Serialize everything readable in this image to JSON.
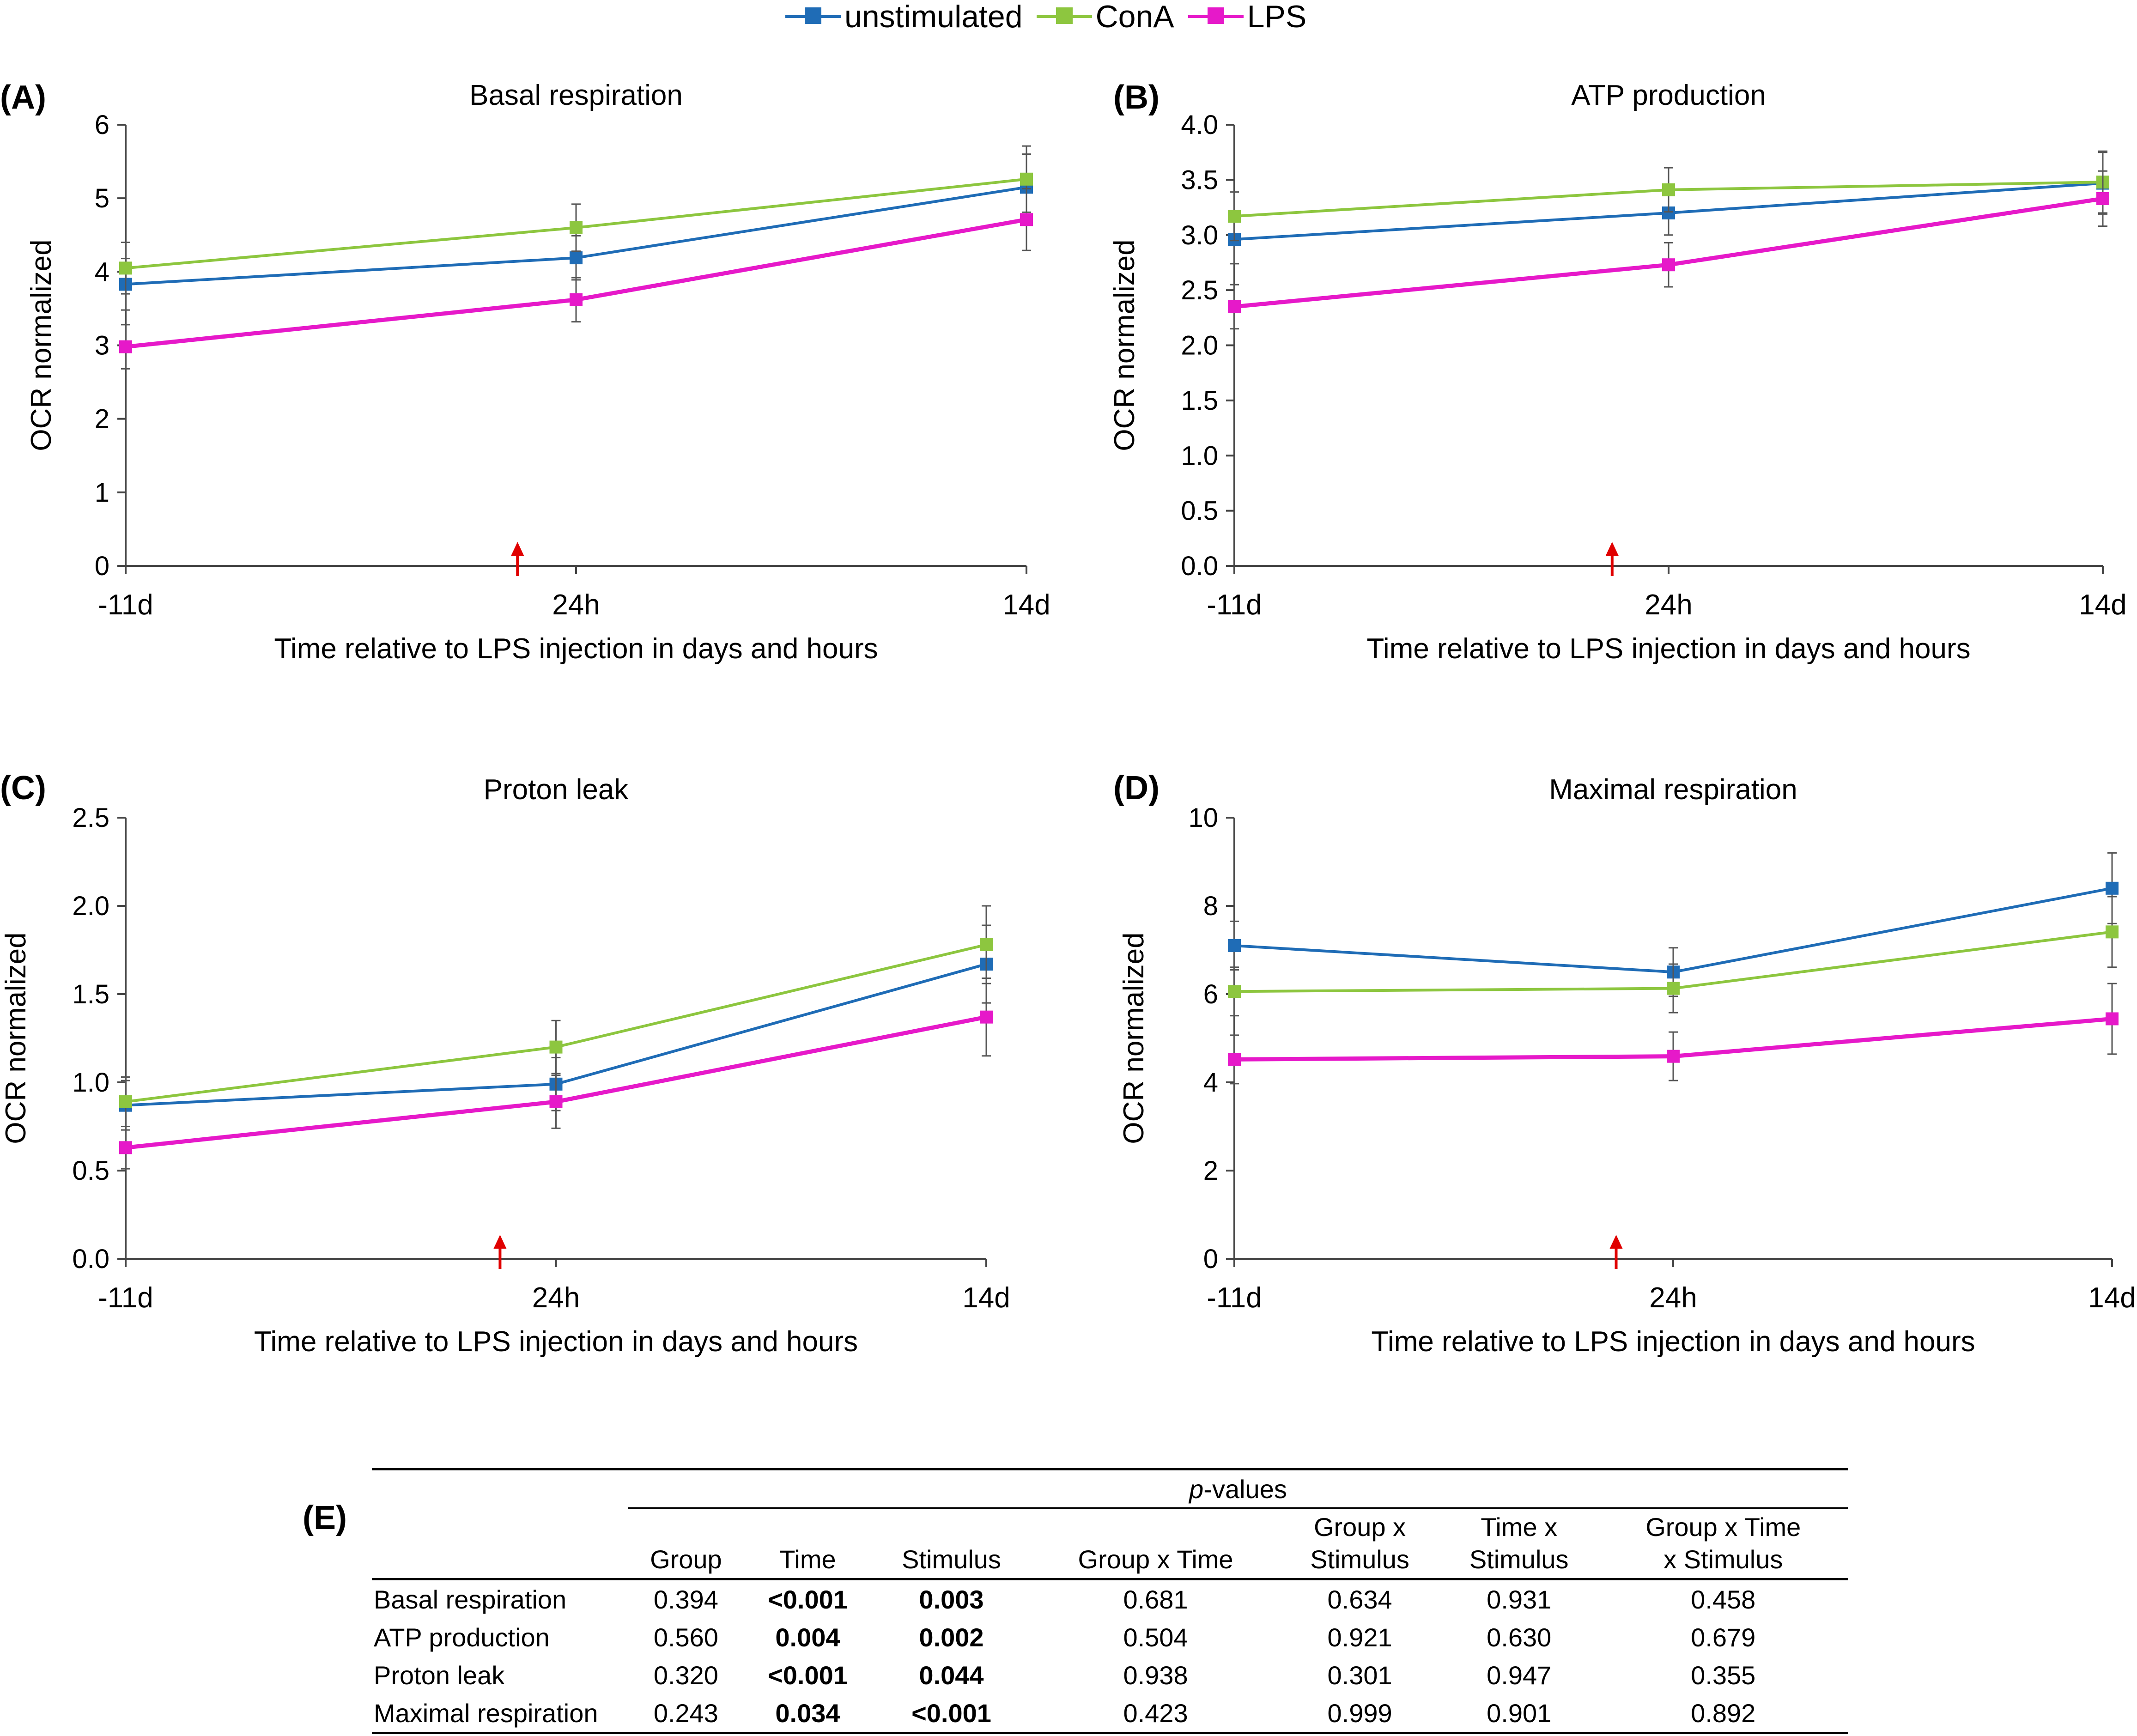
{
  "legend": [
    {
      "name": "unstimulated",
      "color": "#1F6CB6"
    },
    {
      "name": "ConA",
      "color": "#8DC63F"
    },
    {
      "name": "LPS",
      "color": "#E619C9"
    }
  ],
  "chart_data": [
    {
      "panel": "(A)",
      "type": "line",
      "title": "Basal respiration",
      "xlabel": "Time relative to LPS injection in days and hours",
      "ylabel": "OCR normalized",
      "categories": [
        "-11d",
        "24h",
        "14d"
      ],
      "ylim": [
        0,
        6
      ],
      "yticks": [
        "0",
        "1",
        "2",
        "3",
        "4",
        "5",
        "6"
      ],
      "marker": "red arrow between -11d and 24h (LPS injection)",
      "series": [
        {
          "name": "unstimulated",
          "values": [
            3.83,
            4.19,
            5.15
          ],
          "errors": [
            0.35,
            0.3,
            0.45
          ]
        },
        {
          "name": "ConA",
          "values": [
            4.05,
            4.6,
            5.26
          ],
          "errors": [
            0.35,
            0.32,
            0.45
          ]
        },
        {
          "name": "LPS",
          "values": [
            2.98,
            3.62,
            4.71
          ],
          "errors": [
            0.3,
            0.3,
            0.42
          ]
        }
      ]
    },
    {
      "panel": "(B)",
      "type": "line",
      "title": "ATP production",
      "xlabel": "Time relative to LPS injection in days and hours",
      "ylabel": "OCR normalized",
      "categories": [
        "-11d",
        "24h",
        "14d"
      ],
      "ylim": [
        0,
        4
      ],
      "yticks": [
        "0.0",
        "0.5",
        "1.0",
        "1.5",
        "2.0",
        "2.5",
        "3.0",
        "3.5",
        "4.0"
      ],
      "marker": "red arrow between -11d and 24h (LPS injection)",
      "series": [
        {
          "name": "unstimulated",
          "values": [
            2.96,
            3.2,
            3.47
          ],
          "errors": [
            0.22,
            0.2,
            0.28
          ]
        },
        {
          "name": "ConA",
          "values": [
            3.17,
            3.41,
            3.48
          ],
          "errors": [
            0.22,
            0.2,
            0.28
          ]
        },
        {
          "name": "LPS",
          "values": [
            2.35,
            2.73,
            3.33
          ],
          "errors": [
            0.2,
            0.2,
            0.25
          ]
        }
      ]
    },
    {
      "panel": "(C)",
      "type": "line",
      "title": "Proton leak",
      "xlabel": "Time relative to LPS injection in days and hours",
      "ylabel": "OCR normalized",
      "categories": [
        "-11d",
        "24h",
        "14d"
      ],
      "ylim": [
        0,
        2.5
      ],
      "yticks": [
        "0.0",
        "0.5",
        "1.0",
        "1.5",
        "2.0",
        "2.5"
      ],
      "marker": "red arrow between -11d and 24h (LPS injection)",
      "series": [
        {
          "name": "unstimulated",
          "values": [
            0.87,
            0.99,
            1.67
          ],
          "errors": [
            0.14,
            0.15,
            0.22
          ]
        },
        {
          "name": "ConA",
          "values": [
            0.89,
            1.2,
            1.78
          ],
          "errors": [
            0.14,
            0.15,
            0.22
          ]
        },
        {
          "name": "LPS",
          "values": [
            0.63,
            0.89,
            1.37
          ],
          "errors": [
            0.12,
            0.15,
            0.22
          ]
        }
      ]
    },
    {
      "panel": "(D)",
      "type": "line",
      "title": "Maximal respiration",
      "xlabel": "Time relative to LPS injection in days and hours",
      "ylabel": "OCR normalized",
      "categories": [
        "-11d",
        "24h",
        "14d"
      ],
      "ylim": [
        0,
        10
      ],
      "yticks": [
        "0",
        "2",
        "4",
        "6",
        "8",
        "10"
      ],
      "marker": "red arrow between -11d and 24h (LPS injection)",
      "series": [
        {
          "name": "unstimulated",
          "values": [
            7.1,
            6.5,
            8.4
          ],
          "errors": [
            0.55,
            0.55,
            0.8
          ]
        },
        {
          "name": "ConA",
          "values": [
            6.06,
            6.13,
            7.41
          ],
          "errors": [
            0.55,
            0.55,
            0.8
          ]
        },
        {
          "name": "LPS",
          "values": [
            4.52,
            4.59,
            5.44
          ],
          "errors": [
            0.55,
            0.55,
            0.8
          ]
        }
      ]
    },
    {
      "panel": "(E)",
      "type": "table",
      "group_header": "p-values",
      "group_header_italic": "p",
      "group_header_rest": "-values",
      "columns": [
        {
          "l1": "",
          "l2": "Group"
        },
        {
          "l1": "",
          "l2": "Time"
        },
        {
          "l1": "",
          "l2": "Stimulus"
        },
        {
          "l1": "",
          "l2": "Group x Time"
        },
        {
          "l1": "Group x",
          "l2": "Stimulus"
        },
        {
          "l1": "Time x",
          "l2": "Stimulus"
        },
        {
          "l1": "Group x Time",
          "l2": "x Stimulus"
        }
      ],
      "rows": [
        {
          "label": "Basal respiration",
          "values": [
            "0.394",
            "<0.001",
            "0.003",
            "0.681",
            "0.634",
            "0.931",
            "0.458"
          ],
          "bold": [
            false,
            true,
            true,
            false,
            false,
            false,
            false
          ]
        },
        {
          "label": "ATP production",
          "values": [
            "0.560",
            "0.004",
            "0.002",
            "0.504",
            "0.921",
            "0.630",
            "0.679"
          ],
          "bold": [
            false,
            true,
            true,
            false,
            false,
            false,
            false
          ]
        },
        {
          "label": "Proton leak",
          "values": [
            "0.320",
            "<0.001",
            "0.044",
            "0.938",
            "0.301",
            "0.947",
            "0.355"
          ],
          "bold": [
            false,
            true,
            true,
            false,
            false,
            false,
            false
          ]
        },
        {
          "label": "Maximal respiration",
          "values": [
            "0.243",
            "0.034",
            "<0.001",
            "0.423",
            "0.999",
            "0.901",
            "0.892"
          ],
          "bold": [
            false,
            true,
            true,
            false,
            false,
            false,
            false
          ]
        }
      ]
    }
  ]
}
